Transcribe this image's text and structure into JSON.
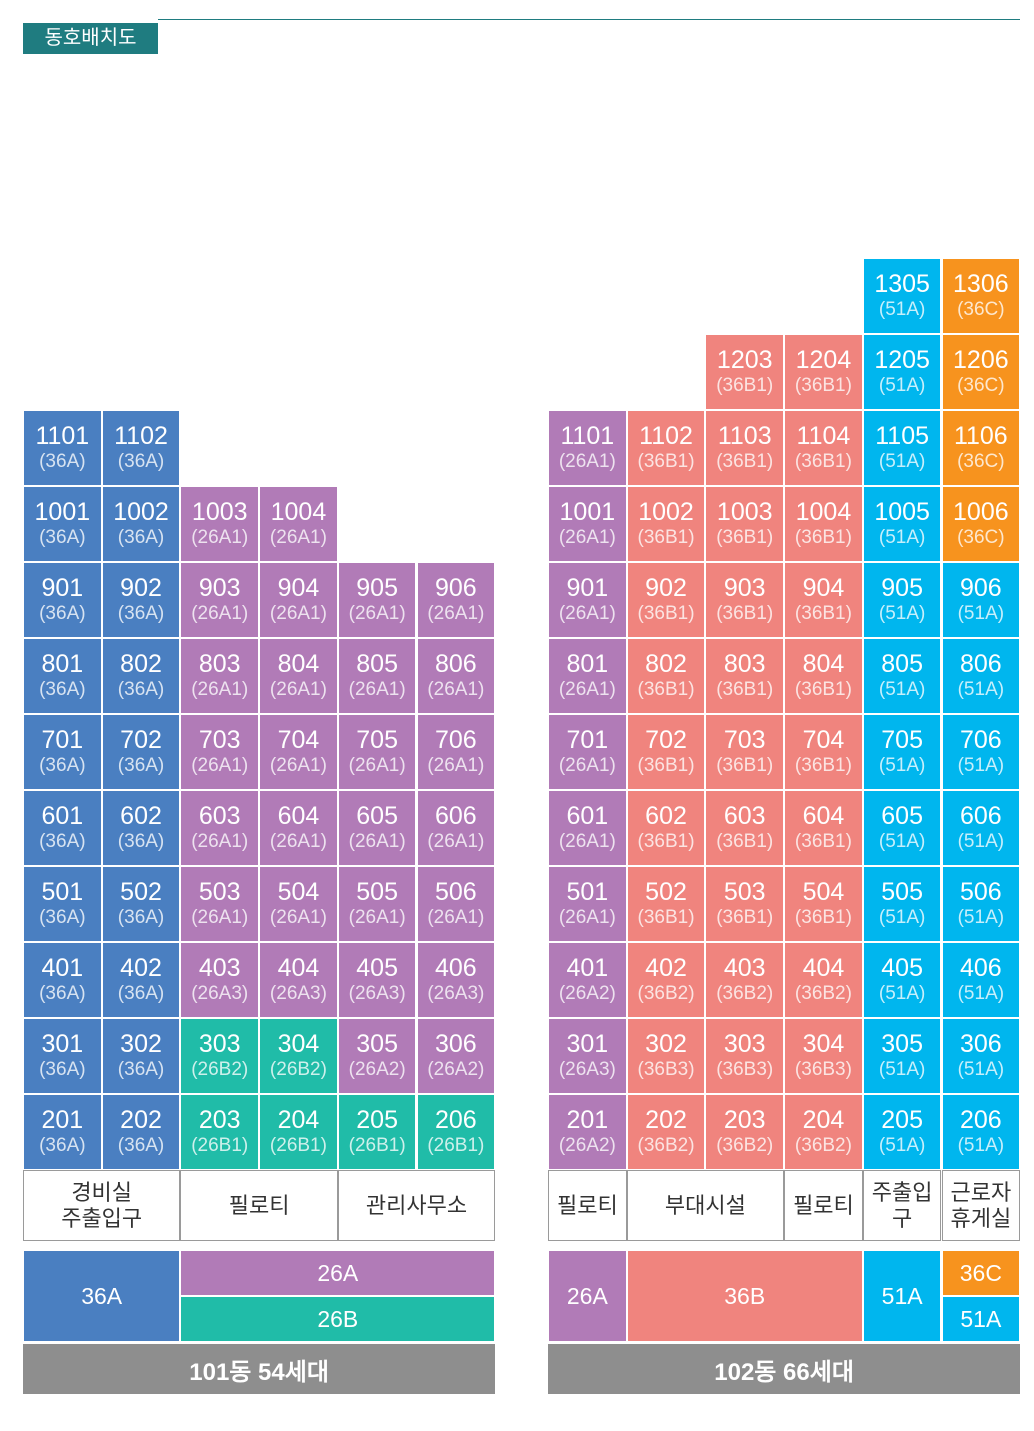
{
  "title": "동호배치도",
  "colors": {
    "36A": "#4a7fc1",
    "26A": "#b17bb7",
    "26B": "#20bca8",
    "36B": "#f0847e",
    "51A": "#00b6ee",
    "36C": "#f7931e"
  },
  "buildings": [
    {
      "id": "101",
      "footer": "101동 54세대",
      "units": [
        {
          "no": "1101",
          "type": "36A",
          "g": "36A"
        },
        {
          "no": "1102",
          "type": "36A",
          "g": "36A"
        },
        {
          "no": "1001",
          "type": "36A",
          "g": "36A"
        },
        {
          "no": "1002",
          "type": "36A",
          "g": "36A"
        },
        {
          "no": "1003",
          "type": "26A1",
          "g": "26A"
        },
        {
          "no": "1004",
          "type": "26A1",
          "g": "26A"
        },
        {
          "no": "901",
          "type": "36A",
          "g": "36A"
        },
        {
          "no": "902",
          "type": "36A",
          "g": "36A"
        },
        {
          "no": "903",
          "type": "26A1",
          "g": "26A"
        },
        {
          "no": "904",
          "type": "26A1",
          "g": "26A"
        },
        {
          "no": "905",
          "type": "26A1",
          "g": "26A"
        },
        {
          "no": "906",
          "type": "26A1",
          "g": "26A"
        },
        {
          "no": "801",
          "type": "36A",
          "g": "36A"
        },
        {
          "no": "802",
          "type": "36A",
          "g": "36A"
        },
        {
          "no": "803",
          "type": "26A1",
          "g": "26A"
        },
        {
          "no": "804",
          "type": "26A1",
          "g": "26A"
        },
        {
          "no": "805",
          "type": "26A1",
          "g": "26A"
        },
        {
          "no": "806",
          "type": "26A1",
          "g": "26A"
        },
        {
          "no": "701",
          "type": "36A",
          "g": "36A"
        },
        {
          "no": "702",
          "type": "36A",
          "g": "36A"
        },
        {
          "no": "703",
          "type": "26A1",
          "g": "26A"
        },
        {
          "no": "704",
          "type": "26A1",
          "g": "26A"
        },
        {
          "no": "705",
          "type": "26A1",
          "g": "26A"
        },
        {
          "no": "706",
          "type": "26A1",
          "g": "26A"
        },
        {
          "no": "601",
          "type": "36A",
          "g": "36A"
        },
        {
          "no": "602",
          "type": "36A",
          "g": "36A"
        },
        {
          "no": "603",
          "type": "26A1",
          "g": "26A"
        },
        {
          "no": "604",
          "type": "26A1",
          "g": "26A"
        },
        {
          "no": "605",
          "type": "26A1",
          "g": "26A"
        },
        {
          "no": "606",
          "type": "26A1",
          "g": "26A"
        },
        {
          "no": "501",
          "type": "36A",
          "g": "36A"
        },
        {
          "no": "502",
          "type": "36A",
          "g": "36A"
        },
        {
          "no": "503",
          "type": "26A1",
          "g": "26A"
        },
        {
          "no": "504",
          "type": "26A1",
          "g": "26A"
        },
        {
          "no": "505",
          "type": "26A1",
          "g": "26A"
        },
        {
          "no": "506",
          "type": "26A1",
          "g": "26A"
        },
        {
          "no": "401",
          "type": "36A",
          "g": "36A"
        },
        {
          "no": "402",
          "type": "36A",
          "g": "36A"
        },
        {
          "no": "403",
          "type": "26A3",
          "g": "26A"
        },
        {
          "no": "404",
          "type": "26A3",
          "g": "26A"
        },
        {
          "no": "405",
          "type": "26A3",
          "g": "26A"
        },
        {
          "no": "406",
          "type": "26A3",
          "g": "26A"
        },
        {
          "no": "301",
          "type": "36A",
          "g": "36A"
        },
        {
          "no": "302",
          "type": "36A",
          "g": "36A"
        },
        {
          "no": "303",
          "type": "26B2",
          "g": "26B"
        },
        {
          "no": "304",
          "type": "26B2",
          "g": "26B"
        },
        {
          "no": "305",
          "type": "26A2",
          "g": "26A"
        },
        {
          "no": "306",
          "type": "26A2",
          "g": "26A"
        },
        {
          "no": "201",
          "type": "36A",
          "g": "36A"
        },
        {
          "no": "202",
          "type": "36A",
          "g": "36A"
        },
        {
          "no": "203",
          "type": "26B1",
          "g": "26B"
        },
        {
          "no": "204",
          "type": "26B1",
          "g": "26B"
        },
        {
          "no": "205",
          "type": "26B1",
          "g": "26B"
        },
        {
          "no": "206",
          "type": "26B1",
          "g": "26B"
        }
      ],
      "ground": [
        "경비실\n주출입구",
        "필로티",
        "관리사무소"
      ],
      "legend": [
        "36A",
        "26A",
        "26B"
      ]
    },
    {
      "id": "102",
      "footer": "102동 66세대",
      "units": [
        {
          "no": "1305",
          "type": "51A",
          "g": "51A"
        },
        {
          "no": "1306",
          "type": "36C",
          "g": "36C"
        },
        {
          "no": "1203",
          "type": "36B1",
          "g": "36B"
        },
        {
          "no": "1204",
          "type": "36B1",
          "g": "36B"
        },
        {
          "no": "1205",
          "type": "51A",
          "g": "51A"
        },
        {
          "no": "1206",
          "type": "36C",
          "g": "36C"
        },
        {
          "no": "1101",
          "type": "26A1",
          "g": "26A"
        },
        {
          "no": "1102",
          "type": "36B1",
          "g": "36B"
        },
        {
          "no": "1103",
          "type": "36B1",
          "g": "36B"
        },
        {
          "no": "1104",
          "type": "36B1",
          "g": "36B"
        },
        {
          "no": "1105",
          "type": "51A",
          "g": "51A"
        },
        {
          "no": "1106",
          "type": "36C",
          "g": "36C"
        },
        {
          "no": "1001",
          "type": "26A1",
          "g": "26A"
        },
        {
          "no": "1002",
          "type": "36B1",
          "g": "36B"
        },
        {
          "no": "1003",
          "type": "36B1",
          "g": "36B"
        },
        {
          "no": "1004",
          "type": "36B1",
          "g": "36B"
        },
        {
          "no": "1005",
          "type": "51A",
          "g": "51A"
        },
        {
          "no": "1006",
          "type": "36C",
          "g": "36C"
        },
        {
          "no": "901",
          "type": "26A1",
          "g": "26A"
        },
        {
          "no": "902",
          "type": "36B1",
          "g": "36B"
        },
        {
          "no": "903",
          "type": "36B1",
          "g": "36B"
        },
        {
          "no": "904",
          "type": "36B1",
          "g": "36B"
        },
        {
          "no": "905",
          "type": "51A",
          "g": "51A"
        },
        {
          "no": "906",
          "type": "51A",
          "g": "51A"
        },
        {
          "no": "801",
          "type": "26A1",
          "g": "26A"
        },
        {
          "no": "802",
          "type": "36B1",
          "g": "36B"
        },
        {
          "no": "803",
          "type": "36B1",
          "g": "36B"
        },
        {
          "no": "804",
          "type": "36B1",
          "g": "36B"
        },
        {
          "no": "805",
          "type": "51A",
          "g": "51A"
        },
        {
          "no": "806",
          "type": "51A",
          "g": "51A"
        },
        {
          "no": "701",
          "type": "26A1",
          "g": "26A"
        },
        {
          "no": "702",
          "type": "36B1",
          "g": "36B"
        },
        {
          "no": "703",
          "type": "36B1",
          "g": "36B"
        },
        {
          "no": "704",
          "type": "36B1",
          "g": "36B"
        },
        {
          "no": "705",
          "type": "51A",
          "g": "51A"
        },
        {
          "no": "706",
          "type": "51A",
          "g": "51A"
        },
        {
          "no": "601",
          "type": "26A1",
          "g": "26A"
        },
        {
          "no": "602",
          "type": "36B1",
          "g": "36B"
        },
        {
          "no": "603",
          "type": "36B1",
          "g": "36B"
        },
        {
          "no": "604",
          "type": "36B1",
          "g": "36B"
        },
        {
          "no": "605",
          "type": "51A",
          "g": "51A"
        },
        {
          "no": "606",
          "type": "51A",
          "g": "51A"
        },
        {
          "no": "501",
          "type": "26A1",
          "g": "26A"
        },
        {
          "no": "502",
          "type": "36B1",
          "g": "36B"
        },
        {
          "no": "503",
          "type": "36B1",
          "g": "36B"
        },
        {
          "no": "504",
          "type": "36B1",
          "g": "36B"
        },
        {
          "no": "505",
          "type": "51A",
          "g": "51A"
        },
        {
          "no": "506",
          "type": "51A",
          "g": "51A"
        },
        {
          "no": "401",
          "type": "26A2",
          "g": "26A"
        },
        {
          "no": "402",
          "type": "36B2",
          "g": "36B"
        },
        {
          "no": "403",
          "type": "36B2",
          "g": "36B"
        },
        {
          "no": "404",
          "type": "36B2",
          "g": "36B"
        },
        {
          "no": "405",
          "type": "51A",
          "g": "51A"
        },
        {
          "no": "406",
          "type": "51A",
          "g": "51A"
        },
        {
          "no": "301",
          "type": "26A3",
          "g": "26A"
        },
        {
          "no": "302",
          "type": "36B3",
          "g": "36B"
        },
        {
          "no": "303",
          "type": "36B3",
          "g": "36B"
        },
        {
          "no": "304",
          "type": "36B3",
          "g": "36B"
        },
        {
          "no": "305",
          "type": "51A",
          "g": "51A"
        },
        {
          "no": "306",
          "type": "51A",
          "g": "51A"
        },
        {
          "no": "201",
          "type": "26A2",
          "g": "26A"
        },
        {
          "no": "202",
          "type": "36B2",
          "g": "36B"
        },
        {
          "no": "203",
          "type": "36B2",
          "g": "36B"
        },
        {
          "no": "204",
          "type": "36B2",
          "g": "36B"
        },
        {
          "no": "205",
          "type": "51A",
          "g": "51A"
        },
        {
          "no": "206",
          "type": "51A",
          "g": "51A"
        }
      ],
      "ground": [
        "필로티",
        "부대시설",
        "필로티",
        "주출입구",
        "근로자\n휴게실"
      ],
      "legend": [
        "26A",
        "36B",
        "51A",
        "36C",
        "51A"
      ]
    }
  ]
}
